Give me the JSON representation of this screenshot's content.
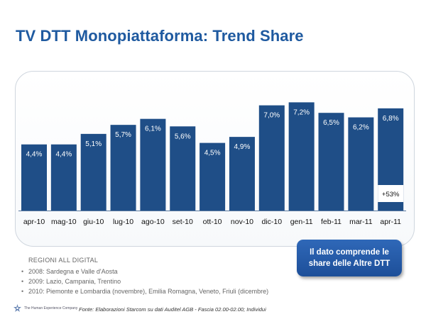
{
  "title": "TV DTT Monopiattaforma: Trend Share",
  "chart_data": {
    "type": "bar",
    "categories": [
      "apr-10",
      "mag-10",
      "giu-10",
      "lug-10",
      "ago-10",
      "set-10",
      "ott-10",
      "nov-10",
      "dic-10",
      "gen-11",
      "feb-11",
      "mar-11",
      "apr-11"
    ],
    "values": [
      4.4,
      4.4,
      5.1,
      5.7,
      6.1,
      5.6,
      4.5,
      4.9,
      7.0,
      7.2,
      6.5,
      6.2,
      6.8
    ],
    "labels": [
      "4,4%",
      "4,4%",
      "5,1%",
      "5,7%",
      "6,1%",
      "5,6%",
      "4,5%",
      "4,9%",
      "7,0%",
      "7,2%",
      "6,5%",
      "6,2%",
      "6,8%"
    ],
    "increment_annotation": "+53%",
    "ylim": [
      0,
      7.5
    ],
    "bar_color": "#1f4e87",
    "grid": false
  },
  "callout": "Il dato comprende le share delle Altre DTT",
  "notes": {
    "heading": "REGIONI ALL DIGITAL",
    "items": [
      "2008: Sardegna e Valle d'Aosta",
      "2009: Lazio, Campania, Trentino",
      "2010: Piemonte e Lombardia (novembre), Emilia Romagna, Veneto, Friuli (dicembre)"
    ]
  },
  "logo_text": "The Human Experience Company",
  "source": "Fonte: Elaborazioni Starcom su dati Auditel AGB - Fascia 02.00-02.00; Individui",
  "colors": {
    "title": "#1f5aa0",
    "bar": "#1f4e87",
    "callout": "#2a61b0"
  }
}
